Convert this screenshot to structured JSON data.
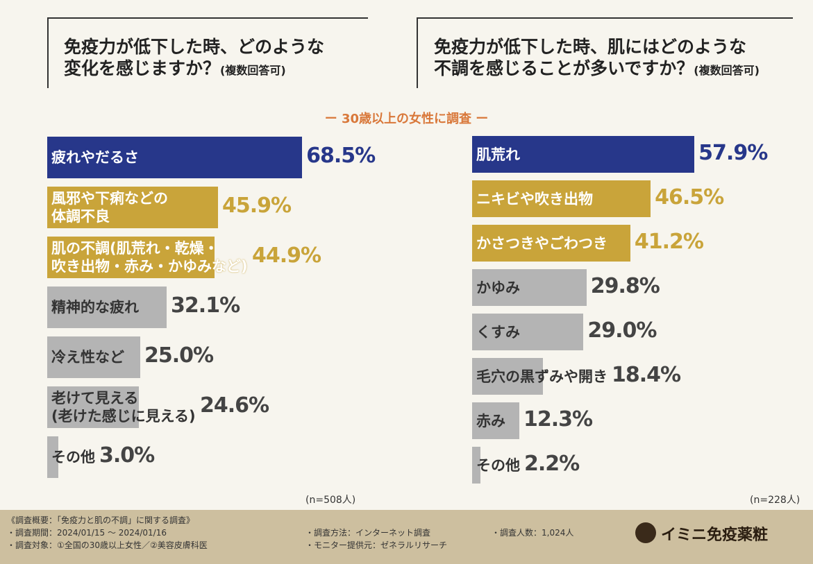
{
  "header": {
    "left": {
      "title": "免疫力が低下した時、どのような\n変化を感じますか？",
      "note": "(複数回答可)"
    },
    "right": {
      "title": "免疫力が低下した時、肌にはどのような\n不調を感じることが多いですか？",
      "note": "(複数回答可)"
    },
    "subtitle": "ー 30歳以上の女性に調査 ー"
  },
  "chart_data": [
    {
      "type": "bar",
      "orientation": "horizontal",
      "categories": [
        "疲れやだるさ",
        "風邪や下痢などの\n体調不良",
        "肌の不調(肌荒れ・乾燥・\n吹き出物・赤み・かゆみなど)",
        "精神的な疲れ",
        "冷え性など",
        "老けて見える\n(老けた感じに見える)",
        "その他"
      ],
      "values": [
        68.5,
        45.9,
        44.9,
        32.1,
        25.0,
        24.6,
        3.0
      ],
      "value_labels": [
        "68.5%",
        "45.9%",
        "44.9%",
        "32.1%",
        "25.0%",
        "24.6%",
        "3.0%"
      ],
      "colors": [
        "#27378a",
        "#c9a43a",
        "#c9a43a",
        "#b4b4b4",
        "#b4b4b4",
        "#b4b4b4",
        "#b4b4b4"
      ],
      "note": "(n=508人)"
    },
    {
      "type": "bar",
      "orientation": "horizontal",
      "categories": [
        "肌荒れ",
        "ニキビや吹き出物",
        "かさつきやごわつき",
        "かゆみ",
        "くすみ",
        "毛穴の黒ずみや開き",
        "赤み",
        "その他"
      ],
      "values": [
        57.9,
        46.5,
        41.2,
        29.8,
        29.0,
        18.4,
        12.3,
        2.2
      ],
      "value_labels": [
        "57.9%",
        "46.5%",
        "41.2%",
        "29.8%",
        "29.0%",
        "18.4%",
        "12.3%",
        "2.2%"
      ],
      "colors": [
        "#27378a",
        "#c9a43a",
        "#c9a43a",
        "#b4b4b4",
        "#b4b4b4",
        "#b4b4b4",
        "#b4b4b4",
        "#b4b4b4"
      ],
      "note": "(n=228人)"
    }
  ],
  "footer": {
    "heading": "《調査概要：「免疫力と肌の不調」に関する調査》",
    "period": "・調査期間：2024/01/15 ～ 2024/01/16",
    "target": "・調査対象：①全国の30歳以上女性／②美容皮膚科医",
    "method": "・調査方法：インターネット調査",
    "provider": "・モニター提供元：ゼネラルリサーチ",
    "count": "・調査人数：1,024人",
    "logo": "イミニ免疫薬粧"
  }
}
